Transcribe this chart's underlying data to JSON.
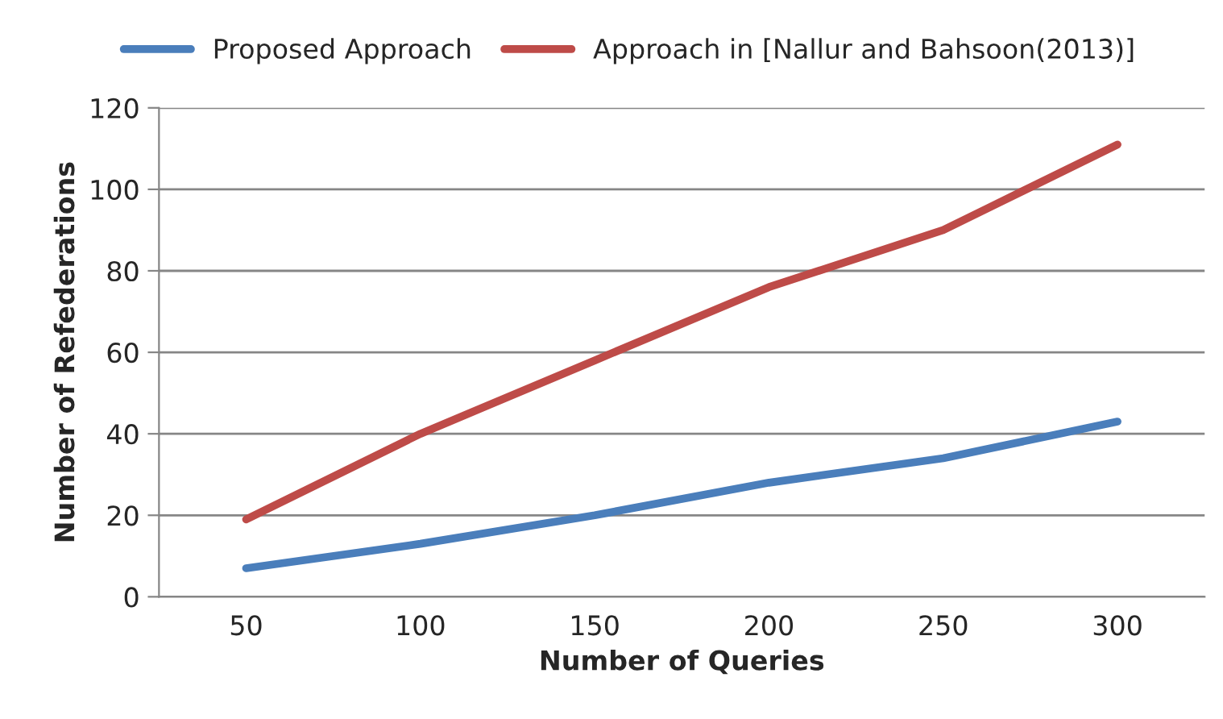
{
  "chart_data": {
    "type": "line",
    "xlabel": "Number of Queries",
    "ylabel": "Number of Refederations",
    "categories": [
      "50",
      "100",
      "150",
      "200",
      "250",
      "300"
    ],
    "series": [
      {
        "name": "Proposed Approach",
        "color": "#4a7ebb",
        "values": [
          7,
          13,
          20,
          28,
          34,
          43
        ]
      },
      {
        "name": "Approach in [Nallur and Bahsoon(2013)]",
        "color": "#be4b48",
        "values": [
          19,
          40,
          58,
          76,
          90,
          111
        ]
      }
    ],
    "ylim": [
      0,
      120
    ],
    "yticks": [
      0,
      20,
      40,
      60,
      80,
      100,
      120
    ],
    "grid": "y",
    "legend": "top",
    "marker": "none",
    "line_style": "solid"
  }
}
